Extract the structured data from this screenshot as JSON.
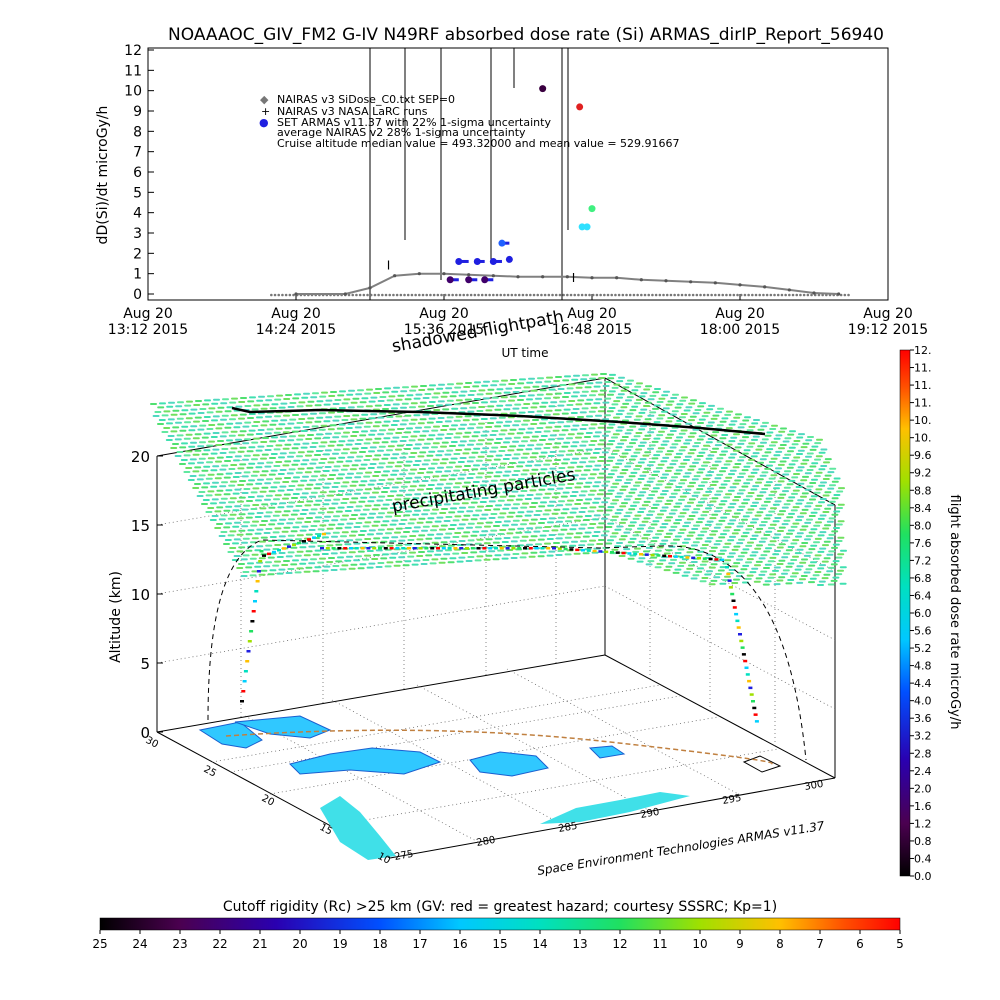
{
  "header": {
    "title": "NOAAAOC_GIV_FM2 G-IV    N49RF   absorbed dose rate (Si) ARMAS_dirIP_Report_56940"
  },
  "colors": {
    "nairas_v3": "#808080",
    "armas": "#1f1fe0",
    "shadow_path": "#000000",
    "precip": "#50e070"
  },
  "chart_data": [
    {
      "type": "scatter",
      "title": "NOAAAOC_GIV_FM2 G-IV    N49RF   absorbed dose rate (Si) ARMAS_dirIP_Report_56940",
      "xlabel": "UT time",
      "ylabel": "dD(Si)/dt microGy/h",
      "ylim": [
        0,
        12
      ],
      "yticks": [
        "0",
        "1",
        "2",
        "3",
        "4",
        "5",
        "6",
        "7",
        "8",
        "9",
        "10",
        "11",
        "12"
      ],
      "xticks": [
        {
          "line1": "Aug 20",
          "line2": "13:12 2015"
        },
        {
          "line1": "Aug 20",
          "line2": "14:24 2015"
        },
        {
          "line1": "Aug 20",
          "line2": "15:36 2015"
        },
        {
          "line1": "Aug 20",
          "line2": "16:48 2015"
        },
        {
          "line1": "Aug 20",
          "line2": "18:00 2015"
        },
        {
          "line1": "Aug 20",
          "line2": "19:12 2015"
        }
      ],
      "legend": [
        {
          "symbol": "◆",
          "text": "NAIRAS v3 SiDose_C0.txt SEP=0"
        },
        {
          "symbol": "+",
          "text": "NAIRAS v3 NASA LaRC runs"
        },
        {
          "symbol": "●",
          "text": "SET ARMAS v11.37 with 22% 1-sigma uncertainty"
        },
        {
          "symbol": "",
          "text": "average NAIRAS v2 28% 1-sigma uncertainty"
        },
        {
          "symbol": "",
          "text": "Cruise altitude median value = 493.32000 and mean value = 529.91667"
        }
      ],
      "legend_position": "top-left",
      "series": [
        {
          "name": "NAIRAS v3 SiDose_C0.txt SEP=0",
          "x_hours": [
            14.4,
            14.8,
            15.0,
            15.2,
            15.4,
            15.6,
            15.8,
            16.0,
            16.2,
            16.4,
            16.6,
            16.8,
            17.0,
            17.2,
            17.4,
            17.6,
            17.8,
            18.0,
            18.2,
            18.4,
            18.6,
            18.8
          ],
          "values": [
            0.0,
            0.0,
            0.3,
            0.9,
            1.0,
            1.0,
            0.95,
            0.9,
            0.85,
            0.85,
            0.85,
            0.8,
            0.8,
            0.7,
            0.65,
            0.6,
            0.55,
            0.45,
            0.35,
            0.2,
            0.05,
            0.0
          ]
        },
        {
          "name": "SET ARMAS v11.37 with 22% 1-sigma uncertainty",
          "x_hours": [
            15.65,
            15.72,
            15.8,
            15.87,
            15.93,
            16.0,
            16.07,
            16.13
          ],
          "values": [
            0.7,
            1.6,
            0.7,
            1.6,
            0.7,
            1.6,
            2.5,
            1.7
          ]
        },
        {
          "name": "ARMAS high points",
          "x_hours": [
            16.4,
            16.7,
            16.72,
            16.76,
            16.8
          ],
          "values": [
            10.1,
            9.2,
            3.3,
            3.3,
            4.2
          ]
        }
      ]
    },
    {
      "type": "scatter",
      "zlabel": "Altitude (km)",
      "zticks": [
        "0",
        "5",
        "10",
        "15",
        "20"
      ],
      "zlim": [
        0,
        20
      ],
      "lat_ticks": [
        "30",
        "25",
        "20",
        "15",
        "10"
      ],
      "lon_ticks": [
        "275",
        "280",
        "285",
        "290",
        "295",
        "300"
      ],
      "annotations": [
        "shadowed flightpath",
        "precipitating particles",
        "UT time"
      ],
      "credit": "Space Environment Technologies ARMAS v11.37",
      "colorbar_right": {
        "label": "flight absorbed dose rate microGy/h",
        "ticks": [
          "0.0",
          "0.4",
          "0.8",
          "1.2",
          "1.6",
          "2.0",
          "2.4",
          "2.8",
          "3.2",
          "3.6",
          "4.0",
          "4.4",
          "4.8",
          "5.2",
          "5.6",
          "6.0",
          "6.4",
          "6.8",
          "7.2",
          "7.6",
          "8.0",
          "8.4",
          "8.8",
          "9.2",
          "9.6",
          "10.",
          "10.",
          "11.",
          "11.",
          "11.",
          "12."
        ]
      },
      "colorbar_bottom": {
        "label": "Cutoff rigidity (Rc) >25 km (GV: red = greatest hazard; courtesy SSSRC; Kp=1)",
        "ticks": [
          "25",
          "24",
          "23",
          "22",
          "21",
          "20",
          "19",
          "18",
          "17",
          "16",
          "15",
          "14",
          "13",
          "12",
          "11",
          "10",
          "9",
          "8",
          "7",
          "6",
          "5"
        ]
      }
    }
  ]
}
